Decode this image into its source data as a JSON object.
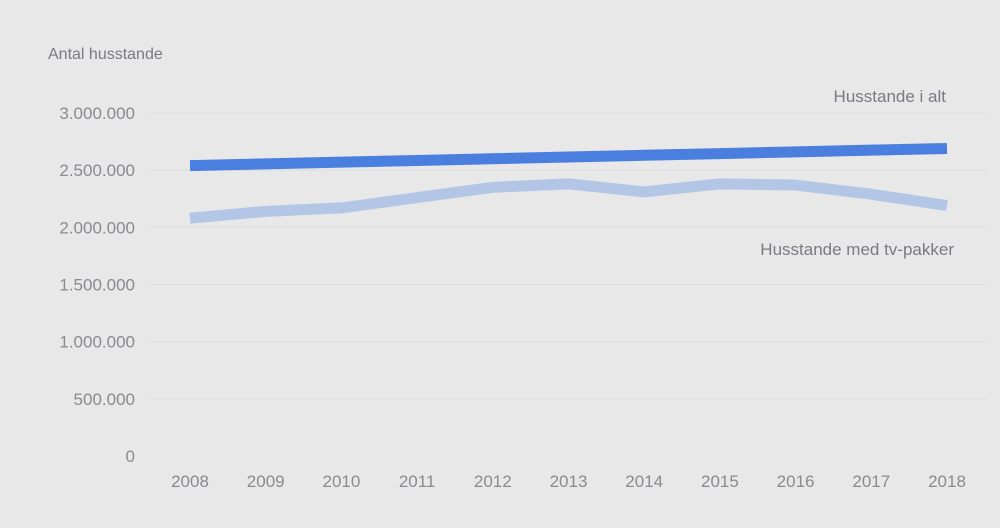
{
  "chart_data": {
    "type": "line",
    "ylabel": "Antal husstande",
    "x": [
      "2008",
      "2009",
      "2010",
      "2011",
      "2012",
      "2013",
      "2014",
      "2015",
      "2016",
      "2017",
      "2018"
    ],
    "yticks": [
      "0",
      "500.000",
      "1.000.000",
      "1.500.000",
      "2.000.000",
      "2.500.000",
      "3.000.000"
    ],
    "ytick_values": [
      0,
      500000,
      1000000,
      1500000,
      2000000,
      2500000,
      3000000
    ],
    "ylim": [
      0,
      3000000
    ],
    "grid": true,
    "legend": "inline labels",
    "series": [
      {
        "name": "Husstande i alt",
        "color": "#4a7fe0",
        "values": [
          2540000,
          2555000,
          2570000,
          2585000,
          2600000,
          2615000,
          2630000,
          2645000,
          2660000,
          2675000,
          2690000
        ]
      },
      {
        "name": "Husstande med tv-pakker",
        "color": "#b3c6e6",
        "values": [
          2080000,
          2140000,
          2170000,
          2260000,
          2350000,
          2380000,
          2310000,
          2380000,
          2370000,
          2290000,
          2190000
        ]
      }
    ]
  }
}
